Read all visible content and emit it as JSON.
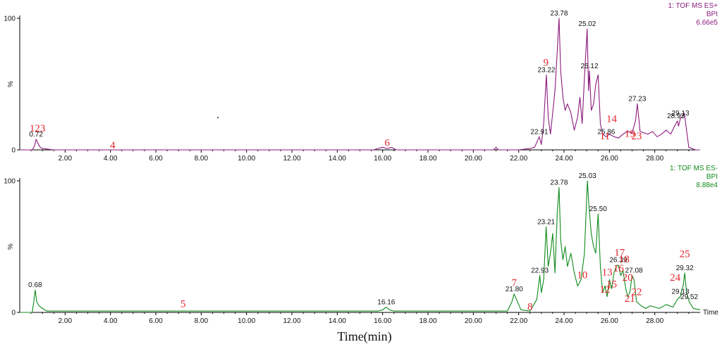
{
  "figure": {
    "xlabel": "Time(min)",
    "time_axis_unit": "Time"
  },
  "chart_data": [
    {
      "type": "line",
      "title": "1: TOF MS ES+",
      "subtitle": "BPI",
      "intensity": "6.66e5",
      "color": "#8b1a7c",
      "xlim": [
        0,
        30.0
      ],
      "ylim": [
        0,
        100
      ],
      "yticks": [
        0,
        100
      ],
      "ylabel": "%",
      "xticks": [
        "2.00",
        "4.00",
        "6.00",
        "8.00",
        "10.00",
        "12.00",
        "14.00",
        "16.00",
        "18.00",
        "20.00",
        "22.00",
        "24.00",
        "26.00",
        "28.00"
      ],
      "x": [
        0.0,
        0.55,
        0.65,
        0.72,
        0.8,
        0.9,
        1.0,
        1.5,
        3.0,
        4.0,
        6.0,
        8.0,
        10.0,
        12.0,
        14.0,
        15.6,
        15.8,
        16.0,
        16.2,
        16.4,
        16.6,
        18.0,
        20.0,
        20.9,
        21.0,
        21.1,
        21.3,
        22.0,
        22.5,
        22.7,
        22.91,
        23.0,
        23.1,
        23.22,
        23.3,
        23.4,
        23.5,
        23.6,
        23.7,
        23.78,
        23.85,
        23.95,
        24.05,
        24.15,
        24.3,
        24.45,
        24.6,
        24.7,
        24.8,
        24.9,
        25.02,
        25.08,
        25.12,
        25.2,
        25.3,
        25.4,
        25.5,
        25.6,
        25.7,
        25.86,
        26.0,
        26.2,
        26.4,
        26.6,
        26.8,
        27.0,
        27.15,
        27.23,
        27.35,
        27.5,
        27.7,
        27.9,
        28.1,
        28.3,
        28.5,
        28.7,
        28.93,
        29.0,
        29.05,
        29.13,
        29.2,
        29.3,
        29.4,
        29.5,
        29.8,
        30.0
      ],
      "y": [
        0,
        0,
        3,
        8,
        5,
        2,
        1,
        0,
        0,
        0,
        0,
        0,
        0,
        0,
        0,
        0,
        1,
        2,
        1,
        2,
        0,
        0,
        0,
        0,
        2,
        0,
        0,
        0,
        1,
        2,
        10,
        4,
        20,
        57,
        25,
        12,
        28,
        45,
        75,
        100,
        60,
        40,
        30,
        35,
        28,
        15,
        25,
        40,
        20,
        55,
        92,
        45,
        60,
        30,
        35,
        50,
        57,
        20,
        12,
        10,
        12,
        10,
        9,
        12,
        14,
        13,
        22,
        35,
        14,
        13,
        12,
        14,
        10,
        12,
        15,
        12,
        20,
        22,
        18,
        24,
        25,
        28,
        15,
        2,
        0,
        0
      ],
      "peak_labels": [
        {
          "rt": "0.72",
          "x": 0.72,
          "y": 8
        },
        {
          "rt": "22.91",
          "x": 22.91,
          "y": 10
        },
        {
          "rt": "23.22",
          "x": 23.22,
          "y": 57
        },
        {
          "rt": "23.78",
          "x": 23.78,
          "y": 100
        },
        {
          "rt": "25.02",
          "x": 25.02,
          "y": 92
        },
        {
          "rt": "25.12",
          "x": 25.12,
          "y": 60
        },
        {
          "rt": "25.86",
          "x": 25.86,
          "y": 10
        },
        {
          "rt": "27.23",
          "x": 27.23,
          "y": 35
        },
        {
          "rt": "28.93",
          "x": 28.93,
          "y": 22
        },
        {
          "rt": "29.13",
          "x": 29.13,
          "y": 24
        }
      ],
      "annotations": [
        {
          "text": "123",
          "x": 0.78,
          "y": 14
        },
        {
          "text": "4",
          "x": 4.1,
          "y": 1
        },
        {
          "text": "6",
          "x": 16.2,
          "y": 3
        },
        {
          "text": "9",
          "x": 23.2,
          "y": 64
        },
        {
          "text": "14",
          "x": 26.1,
          "y": 21
        },
        {
          "text": "11",
          "x": 25.8,
          "y": 8
        },
        {
          "text": "19",
          "x": 26.9,
          "y": 10
        },
        {
          "text": "23",
          "x": 27.2,
          "y": 8
        }
      ]
    },
    {
      "type": "line",
      "title": "1: TOF MS ES-",
      "subtitle": "BPI",
      "intensity": "8.88e4",
      "color": "#0f8a1a",
      "xlim": [
        0,
        30.0
      ],
      "ylim": [
        0,
        100
      ],
      "yticks": [
        0,
        100
      ],
      "ylabel": "%",
      "xticks": [
        "2.00",
        "4.00",
        "6.00",
        "8.00",
        "10.00",
        "12.00",
        "14.00",
        "16.00",
        "18.00",
        "20.00",
        "22.00",
        "24.00",
        "26.00",
        "28.00"
      ],
      "x": [
        0.0,
        0.55,
        0.62,
        0.68,
        0.75,
        0.85,
        1.0,
        1.2,
        1.5,
        3.0,
        4.0,
        6.0,
        7.2,
        8.0,
        10.0,
        12.0,
        14.0,
        15.8,
        16.0,
        16.16,
        16.3,
        16.5,
        18.0,
        20.0,
        21.5,
        21.7,
        21.8,
        21.9,
        22.1,
        22.5,
        22.8,
        22.93,
        23.0,
        23.1,
        23.21,
        23.3,
        23.4,
        23.5,
        23.6,
        23.7,
        23.78,
        23.85,
        23.95,
        24.05,
        24.15,
        24.3,
        24.45,
        24.6,
        24.75,
        24.9,
        25.03,
        25.1,
        25.2,
        25.3,
        25.4,
        25.5,
        25.6,
        25.7,
        25.8,
        25.9,
        26.0,
        26.1,
        26.2,
        26.3,
        26.39,
        26.5,
        26.6,
        26.7,
        26.8,
        26.9,
        27.0,
        27.08,
        27.2,
        27.4,
        27.6,
        27.8,
        28.0,
        28.2,
        28.5,
        28.8,
        29.0,
        29.13,
        29.2,
        29.25,
        29.32,
        29.4,
        29.52,
        29.7,
        30.0
      ],
      "y": [
        0,
        0,
        8,
        17,
        8,
        5,
        3,
        1,
        1,
        1,
        1,
        1,
        1,
        1,
        1,
        1,
        1,
        1,
        2,
        4,
        2,
        1,
        1,
        1,
        1,
        8,
        14,
        10,
        2,
        1,
        10,
        28,
        15,
        25,
        65,
        35,
        45,
        60,
        30,
        75,
        95,
        55,
        40,
        50,
        35,
        45,
        30,
        20,
        25,
        45,
        100,
        80,
        60,
        50,
        45,
        75,
        35,
        15,
        20,
        12,
        25,
        18,
        30,
        35,
        36,
        28,
        32,
        20,
        12,
        15,
        28,
        25,
        8,
        5,
        3,
        5,
        4,
        3,
        6,
        4,
        10,
        12,
        18,
        20,
        30,
        15,
        8,
        3,
        2
      ],
      "peak_labels": [
        {
          "rt": "0.68",
          "x": 0.68,
          "y": 17
        },
        {
          "rt": "16.16",
          "x": 16.16,
          "y": 4
        },
        {
          "rt": "21.80",
          "x": 21.8,
          "y": 14
        },
        {
          "rt": "22.93",
          "x": 22.93,
          "y": 28
        },
        {
          "rt": "23.21",
          "x": 23.21,
          "y": 65
        },
        {
          "rt": "23.78",
          "x": 23.78,
          "y": 95
        },
        {
          "rt": "25.03",
          "x": 25.03,
          "y": 100
        },
        {
          "rt": "25.50",
          "x": 25.5,
          "y": 75
        },
        {
          "rt": "26.39",
          "x": 26.39,
          "y": 36
        },
        {
          "rt": "27.08",
          "x": 27.08,
          "y": 28
        },
        {
          "rt": "29.13",
          "x": 29.13,
          "y": 12
        },
        {
          "rt": "29.32",
          "x": 29.32,
          "y": 30
        },
        {
          "rt": "29.52",
          "x": 29.52,
          "y": 8
        }
      ],
      "annotations": [
        {
          "text": "5",
          "x": 7.2,
          "y": 4
        },
        {
          "text": "7",
          "x": 21.8,
          "y": 20
        },
        {
          "text": "8",
          "x": 22.5,
          "y": 2
        },
        {
          "text": "10",
          "x": 24.8,
          "y": 26
        },
        {
          "text": "13",
          "x": 25.9,
          "y": 28
        },
        {
          "text": "16",
          "x": 26.4,
          "y": 31
        },
        {
          "text": "17",
          "x": 26.45,
          "y": 43
        },
        {
          "text": "18",
          "x": 26.65,
          "y": 38
        },
        {
          "text": "20",
          "x": 26.8,
          "y": 24
        },
        {
          "text": "12",
          "x": 25.8,
          "y": 15
        },
        {
          "text": "15",
          "x": 26.1,
          "y": 19
        },
        {
          "text": "21",
          "x": 26.9,
          "y": 8
        },
        {
          "text": "22",
          "x": 27.2,
          "y": 13
        },
        {
          "text": "24",
          "x": 28.9,
          "y": 24
        },
        {
          "text": "25",
          "x": 29.32,
          "y": 42
        }
      ]
    }
  ]
}
